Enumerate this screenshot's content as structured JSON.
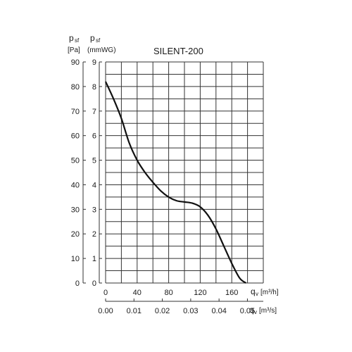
{
  "chart_data": {
    "type": "line",
    "title": "SILENT-200",
    "y_axes": [
      {
        "symbol": "p",
        "subscript": "sf",
        "unit": "[Pa]",
        "range": [
          0,
          90
        ],
        "ticks": [
          "0",
          "10",
          "20",
          "30",
          "40",
          "50",
          "60",
          "70",
          "80",
          "90"
        ]
      },
      {
        "symbol": "p",
        "subscript": "sf",
        "unit": "(mmWG)",
        "range": [
          0,
          9
        ],
        "ticks": [
          "0",
          "1",
          "2",
          "3",
          "4",
          "5",
          "6",
          "7",
          "8",
          "9"
        ]
      }
    ],
    "x_axes": [
      {
        "symbol": "q",
        "subscript": "v",
        "unit": "[m³/h]",
        "range": [
          0,
          200
        ],
        "ticks": [
          "0",
          "40",
          "80",
          "120",
          "160"
        ]
      },
      {
        "symbol": "q",
        "subscript": "v",
        "unit": "[m³/s]",
        "range": [
          0,
          0.0556
        ],
        "ticks": [
          "0.00",
          "0.01",
          "0.02",
          "0.03",
          "0.04",
          "0.05"
        ]
      }
    ],
    "grid": true,
    "series": [
      {
        "x": [
          0,
          10,
          20,
          30,
          40,
          50,
          60,
          70,
          80,
          90,
          100,
          110,
          120,
          130,
          140,
          150,
          160,
          170,
          178
        ],
        "y": [
          82,
          75,
          67,
          57,
          50,
          45,
          41,
          37.5,
          35,
          33.5,
          33,
          32.5,
          31,
          27.5,
          22,
          15,
          8,
          2,
          0
        ]
      }
    ]
  }
}
